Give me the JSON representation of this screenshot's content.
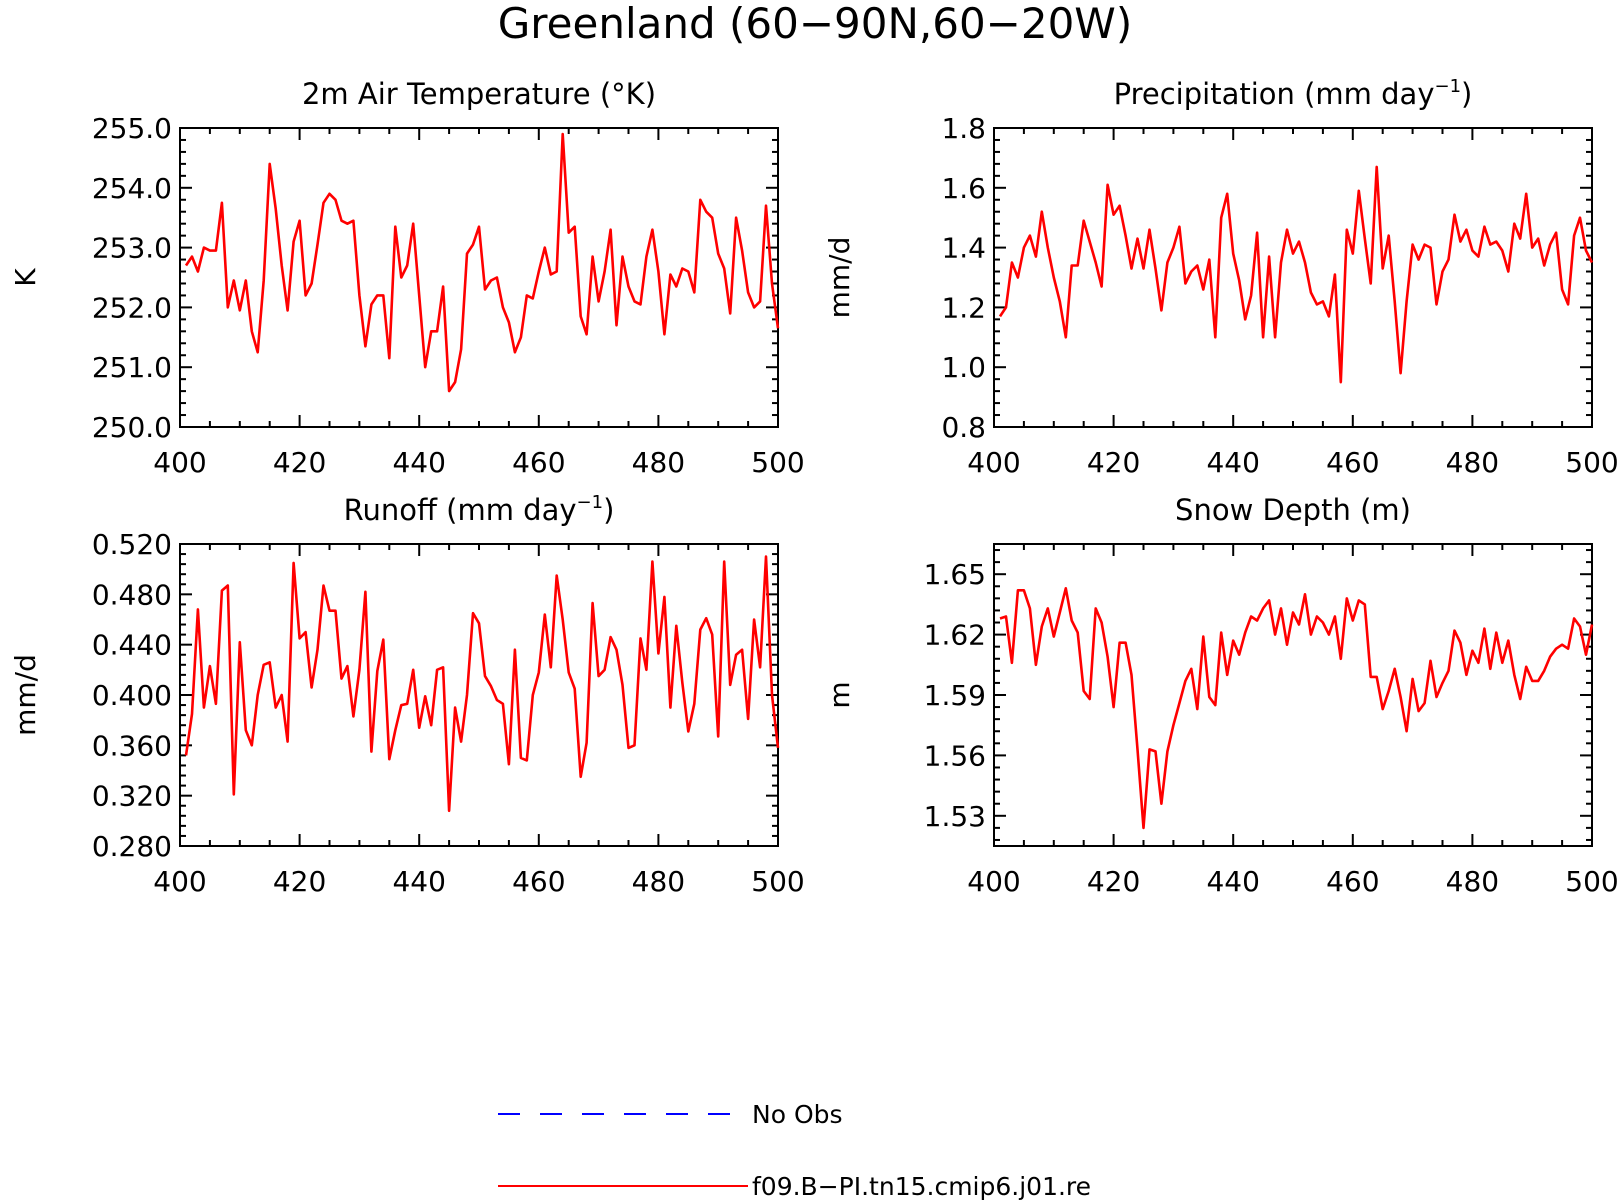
{
  "page_title": "Greenland (60−90N,60−20W)",
  "legend": [
    {
      "label": "No Obs",
      "color": "#0000ff",
      "dash": true
    },
    {
      "label": "f09.B−PI.tn15.cmip6.j01.re",
      "color": "#ff0000",
      "dash": false
    }
  ],
  "chart_data": [
    {
      "type": "line",
      "title": "2m Air Temperature (°K)",
      "title_sup": "",
      "title_suffix": "",
      "ylabel": "K",
      "xlim": [
        400,
        500
      ],
      "ylim": [
        250.0,
        255.0
      ],
      "xticks": [
        "400",
        "420",
        "440",
        "460",
        "480",
        "500"
      ],
      "yticks": [
        "250.0",
        "251.0",
        "252.0",
        "253.0",
        "254.0",
        "255.0"
      ],
      "grid": false,
      "x": [
        401,
        402,
        403,
        404,
        405,
        406,
        407,
        408,
        409,
        410,
        411,
        412,
        413,
        414,
        415,
        416,
        417,
        418,
        419,
        420,
        421,
        422,
        423,
        424,
        425,
        426,
        427,
        428,
        429,
        430,
        431,
        432,
        433,
        434,
        435,
        436,
        437,
        438,
        439,
        440,
        441,
        442,
        443,
        444,
        445,
        446,
        447,
        448,
        449,
        450,
        451,
        452,
        453,
        454,
        455,
        456,
        457,
        458,
        459,
        460,
        461,
        462,
        463,
        464,
        465,
        466,
        467,
        468,
        469,
        470,
        471,
        472,
        473,
        474,
        475,
        476,
        477,
        478,
        479,
        480,
        481,
        482,
        483,
        484,
        485,
        486,
        487,
        488,
        489,
        490,
        491,
        492,
        493,
        494,
        495,
        496,
        497,
        498,
        499,
        500
      ],
      "series": [
        {
          "name": "f09.B−PI.tn15.cmip6.j01.re",
          "color": "#ff0000",
          "values": [
            252.7,
            252.85,
            252.6,
            253.0,
            252.95,
            252.95,
            253.75,
            252.0,
            252.45,
            251.95,
            252.45,
            251.6,
            251.25,
            252.45,
            254.4,
            253.65,
            252.7,
            251.95,
            253.1,
            253.45,
            252.2,
            252.4,
            253.05,
            253.75,
            253.9,
            253.8,
            253.45,
            253.4,
            253.45,
            252.2,
            251.35,
            252.05,
            252.2,
            252.2,
            251.15,
            253.35,
            252.5,
            252.7,
            253.4,
            252.2,
            251.0,
            251.6,
            251.6,
            252.35,
            250.6,
            250.75,
            251.3,
            252.9,
            253.05,
            253.35,
            252.3,
            252.45,
            252.5,
            252.0,
            251.75,
            251.25,
            251.5,
            252.2,
            252.15,
            252.6,
            253.0,
            252.55,
            252.6,
            254.9,
            253.25,
            253.35,
            251.85,
            251.55,
            252.85,
            252.1,
            252.6,
            253.3,
            251.7,
            252.85,
            252.35,
            252.1,
            252.05,
            252.85,
            253.3,
            252.6,
            251.55,
            252.55,
            252.35,
            252.65,
            252.6,
            252.25,
            253.8,
            253.6,
            253.5,
            252.9,
            252.65,
            251.9,
            253.5,
            252.95,
            252.25,
            252.0,
            252.1,
            253.7,
            252.4,
            251.65
          ]
        }
      ]
    },
    {
      "type": "line",
      "title": "Precipitation (mm day",
      "title_sup": "−1",
      "title_suffix": ")",
      "ylabel": "mm/d",
      "xlim": [
        400,
        500
      ],
      "ylim": [
        0.8,
        1.8
      ],
      "xticks": [
        "400",
        "420",
        "440",
        "460",
        "480",
        "500"
      ],
      "yticks": [
        "0.8",
        "1.0",
        "1.2",
        "1.4",
        "1.6",
        "1.8"
      ],
      "grid": false,
      "x": [
        401,
        402,
        403,
        404,
        405,
        406,
        407,
        408,
        409,
        410,
        411,
        412,
        413,
        414,
        415,
        416,
        417,
        418,
        419,
        420,
        421,
        422,
        423,
        424,
        425,
        426,
        427,
        428,
        429,
        430,
        431,
        432,
        433,
        434,
        435,
        436,
        437,
        438,
        439,
        440,
        441,
        442,
        443,
        444,
        445,
        446,
        447,
        448,
        449,
        450,
        451,
        452,
        453,
        454,
        455,
        456,
        457,
        458,
        459,
        460,
        461,
        462,
        463,
        464,
        465,
        466,
        467,
        468,
        469,
        470,
        471,
        472,
        473,
        474,
        475,
        476,
        477,
        478,
        479,
        480,
        481,
        482,
        483,
        484,
        485,
        486,
        487,
        488,
        489,
        490,
        491,
        492,
        493,
        494,
        495,
        496,
        497,
        498,
        499,
        500
      ],
      "series": [
        {
          "name": "f09.B−PI.tn15.cmip6.j01.re",
          "color": "#ff0000",
          "values": [
            1.17,
            1.2,
            1.35,
            1.3,
            1.4,
            1.44,
            1.37,
            1.52,
            1.4,
            1.3,
            1.22,
            1.1,
            1.34,
            1.34,
            1.49,
            1.42,
            1.35,
            1.27,
            1.61,
            1.51,
            1.54,
            1.44,
            1.33,
            1.43,
            1.33,
            1.46,
            1.33,
            1.19,
            1.35,
            1.4,
            1.47,
            1.28,
            1.32,
            1.34,
            1.26,
            1.36,
            1.1,
            1.5,
            1.58,
            1.38,
            1.29,
            1.16,
            1.24,
            1.45,
            1.1,
            1.37,
            1.1,
            1.35,
            1.46,
            1.38,
            1.42,
            1.35,
            1.25,
            1.21,
            1.22,
            1.17,
            1.31,
            0.95,
            1.46,
            1.38,
            1.59,
            1.43,
            1.28,
            1.67,
            1.33,
            1.44,
            1.22,
            0.98,
            1.22,
            1.41,
            1.36,
            1.41,
            1.4,
            1.21,
            1.32,
            1.36,
            1.51,
            1.42,
            1.46,
            1.39,
            1.37,
            1.47,
            1.41,
            1.42,
            1.39,
            1.32,
            1.48,
            1.43,
            1.58,
            1.4,
            1.43,
            1.34,
            1.41,
            1.45,
            1.26,
            1.21,
            1.44,
            1.5,
            1.39,
            1.35
          ]
        }
      ]
    },
    {
      "type": "line",
      "title": "Runoff (mm day",
      "title_sup": "−1",
      "title_suffix": ")",
      "ylabel": "mm/d",
      "xlim": [
        400,
        500
      ],
      "ylim": [
        0.28,
        0.52
      ],
      "xticks": [
        "400",
        "420",
        "440",
        "460",
        "480",
        "500"
      ],
      "yticks": [
        "0.280",
        "0.320",
        "0.360",
        "0.400",
        "0.440",
        "0.480",
        "0.520"
      ],
      "grid": false,
      "x": [
        401,
        402,
        403,
        404,
        405,
        406,
        407,
        408,
        409,
        410,
        411,
        412,
        413,
        414,
        415,
        416,
        417,
        418,
        419,
        420,
        421,
        422,
        423,
        424,
        425,
        426,
        427,
        428,
        429,
        430,
        431,
        432,
        433,
        434,
        435,
        436,
        437,
        438,
        439,
        440,
        441,
        442,
        443,
        444,
        445,
        446,
        447,
        448,
        449,
        450,
        451,
        452,
        453,
        454,
        455,
        456,
        457,
        458,
        459,
        460,
        461,
        462,
        463,
        464,
        465,
        466,
        467,
        468,
        469,
        470,
        471,
        472,
        473,
        474,
        475,
        476,
        477,
        478,
        479,
        480,
        481,
        482,
        483,
        484,
        485,
        486,
        487,
        488,
        489,
        490,
        491,
        492,
        493,
        494,
        495,
        496,
        497,
        498,
        499,
        500
      ],
      "series": [
        {
          "name": "f09.B−PI.tn15.cmip6.j01.re",
          "color": "#ff0000",
          "values": [
            0.352,
            0.385,
            0.468,
            0.39,
            0.423,
            0.393,
            0.483,
            0.487,
            0.321,
            0.442,
            0.372,
            0.36,
            0.4,
            0.424,
            0.426,
            0.39,
            0.4,
            0.363,
            0.505,
            0.445,
            0.45,
            0.406,
            0.436,
            0.487,
            0.467,
            0.467,
            0.413,
            0.423,
            0.383,
            0.42,
            0.482,
            0.355,
            0.419,
            0.444,
            0.349,
            0.372,
            0.392,
            0.393,
            0.42,
            0.374,
            0.399,
            0.376,
            0.42,
            0.422,
            0.308,
            0.39,
            0.363,
            0.4,
            0.465,
            0.457,
            0.415,
            0.407,
            0.396,
            0.393,
            0.345,
            0.436,
            0.35,
            0.348,
            0.4,
            0.418,
            0.464,
            0.422,
            0.495,
            0.46,
            0.418,
            0.405,
            0.335,
            0.362,
            0.473,
            0.415,
            0.42,
            0.446,
            0.436,
            0.408,
            0.358,
            0.36,
            0.445,
            0.42,
            0.506,
            0.433,
            0.478,
            0.39,
            0.455,
            0.41,
            0.371,
            0.393,
            0.452,
            0.461,
            0.448,
            0.367,
            0.506,
            0.408,
            0.432,
            0.436,
            0.381,
            0.46,
            0.422,
            0.51,
            0.4,
            0.358
          ]
        }
      ]
    },
    {
      "type": "line",
      "title": "Snow Depth (m)",
      "title_sup": "",
      "title_suffix": "",
      "ylabel": "m",
      "xlim": [
        400,
        500
      ],
      "ylim": [
        1.515,
        1.665
      ],
      "xticks": [
        "400",
        "420",
        "440",
        "460",
        "480",
        "500"
      ],
      "yticks": [
        "1.53",
        "1.56",
        "1.59",
        "1.62",
        "1.65"
      ],
      "grid": false,
      "x": [
        401,
        402,
        403,
        404,
        405,
        406,
        407,
        408,
        409,
        410,
        411,
        412,
        413,
        414,
        415,
        416,
        417,
        418,
        419,
        420,
        421,
        422,
        423,
        424,
        425,
        426,
        427,
        428,
        429,
        430,
        431,
        432,
        433,
        434,
        435,
        436,
        437,
        438,
        439,
        440,
        441,
        442,
        443,
        444,
        445,
        446,
        447,
        448,
        449,
        450,
        451,
        452,
        453,
        454,
        455,
        456,
        457,
        458,
        459,
        460,
        461,
        462,
        463,
        464,
        465,
        466,
        467,
        468,
        469,
        470,
        471,
        472,
        473,
        474,
        475,
        476,
        477,
        478,
        479,
        480,
        481,
        482,
        483,
        484,
        485,
        486,
        487,
        488,
        489,
        490,
        491,
        492,
        493,
        494,
        495,
        496,
        497,
        498,
        499,
        500
      ],
      "series": [
        {
          "name": "f09.B−PI.tn15.cmip6.j01.re",
          "color": "#ff0000",
          "values": [
            1.628,
            1.629,
            1.606,
            1.642,
            1.642,
            1.633,
            1.605,
            1.624,
            1.633,
            1.619,
            1.631,
            1.643,
            1.627,
            1.621,
            1.592,
            1.588,
            1.633,
            1.626,
            1.609,
            1.584,
            1.616,
            1.616,
            1.6,
            1.563,
            1.524,
            1.563,
            1.562,
            1.536,
            1.562,
            1.575,
            1.586,
            1.597,
            1.603,
            1.583,
            1.619,
            1.589,
            1.585,
            1.621,
            1.6,
            1.617,
            1.61,
            1.621,
            1.629,
            1.627,
            1.633,
            1.637,
            1.62,
            1.633,
            1.615,
            1.631,
            1.625,
            1.64,
            1.62,
            1.629,
            1.626,
            1.62,
            1.629,
            1.608,
            1.638,
            1.627,
            1.637,
            1.635,
            1.599,
            1.599,
            1.583,
            1.592,
            1.603,
            1.589,
            1.572,
            1.598,
            1.582,
            1.586,
            1.607,
            1.589,
            1.596,
            1.602,
            1.622,
            1.616,
            1.6,
            1.612,
            1.606,
            1.623,
            1.603,
            1.621,
            1.606,
            1.617,
            1.6,
            1.588,
            1.604,
            1.597,
            1.597,
            1.602,
            1.609,
            1.613,
            1.615,
            1.613,
            1.628,
            1.624,
            1.61,
            1.625
          ]
        }
      ]
    }
  ]
}
